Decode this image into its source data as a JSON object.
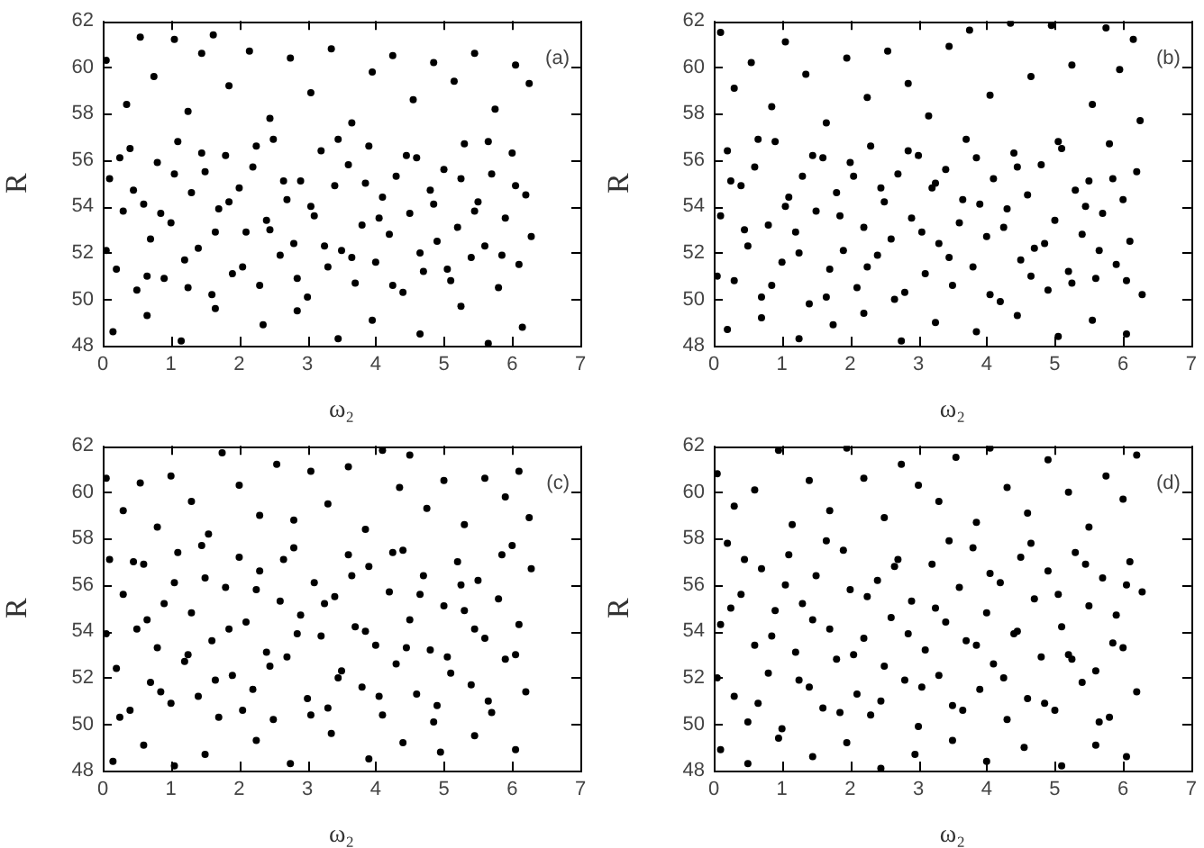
{
  "chart_data": [
    {
      "type": "scatter",
      "xlabel": "ω₂",
      "ylabel": "R",
      "xlim": [
        0,
        7
      ],
      "ylim": [
        48,
        62
      ],
      "xticks": [
        0,
        1,
        2,
        3,
        4,
        5,
        6,
        7
      ],
      "yticks": [
        48,
        50,
        52,
        54,
        56,
        58,
        60,
        62
      ],
      "grid": false,
      "marker": "circle",
      "annotations": [
        "(a)"
      ],
      "series": [
        {
          "color": "#000000",
          "x": [
            0.1,
            0.2,
            0.3,
            0.4,
            0.5,
            0.6,
            0.7,
            0.8,
            0.9,
            1.0,
            1.1,
            1.2,
            1.3,
            1.4,
            1.5,
            1.6,
            1.7,
            1.8,
            1.9,
            2.0,
            2.1,
            2.2,
            2.3,
            2.4,
            2.5,
            2.6,
            2.7,
            2.8,
            2.9,
            3.0,
            3.1,
            3.2,
            3.3,
            3.4,
            3.5,
            3.6,
            3.7,
            3.8,
            3.9,
            4.0,
            4.1,
            4.2,
            4.3,
            4.4,
            4.5,
            4.6,
            4.7,
            4.8,
            4.9,
            5.0,
            5.1,
            5.2,
            5.3,
            5.4,
            5.5,
            5.6,
            5.7,
            5.8,
            5.9,
            6.0,
            6.1,
            6.2,
            6.28,
            0.05,
            0.35,
            0.55,
            0.75,
            1.05,
            1.25,
            1.45,
            1.62,
            1.85,
            2.15,
            2.45,
            2.75,
            3.05,
            3.35,
            3.65,
            3.95,
            4.25,
            4.55,
            4.85,
            5.15,
            5.45,
            5.75,
            6.05,
            6.25,
            0.15,
            0.65,
            1.15,
            1.65,
            2.35,
            2.85,
            3.45,
            3.95,
            4.65,
            5.25,
            5.65,
            6.15,
            0.05,
            0.25,
            0.45,
            0.65,
            0.85,
            1.05,
            1.25,
            1.45,
            1.65,
            1.85,
            2.05,
            2.25,
            2.45,
            2.65,
            2.85,
            3.05,
            3.25,
            3.45,
            3.65,
            3.85,
            4.05,
            4.25,
            4.45,
            4.65,
            4.85,
            5.05,
            5.25,
            5.45,
            5.65,
            5.85,
            6.05
          ],
          "values": [
            55.2,
            51.3,
            53.8,
            56.5,
            50.4,
            54.1,
            52.6,
            55.9,
            50.9,
            53.3,
            56.8,
            51.7,
            54.6,
            52.2,
            55.5,
            50.2,
            53.9,
            56.2,
            51.1,
            54.8,
            52.9,
            55.7,
            50.6,
            53.4,
            56.9,
            51.9,
            54.3,
            52.4,
            55.1,
            50.1,
            53.6,
            56.4,
            51.4,
            54.9,
            52.1,
            55.8,
            50.7,
            53.2,
            56.6,
            51.6,
            54.4,
            52.8,
            55.3,
            50.3,
            53.7,
            56.1,
            51.2,
            54.7,
            52.5,
            55.6,
            50.8,
            53.1,
            56.7,
            51.8,
            54.2,
            52.3,
            55.4,
            50.5,
            53.5,
            56.3,
            51.5,
            54.5,
            52.7,
            60.3,
            58.4,
            61.3,
            59.6,
            61.2,
            58.1,
            60.6,
            61.4,
            59.2,
            60.7,
            57.8,
            60.4,
            58.9,
            60.8,
            57.6,
            59.8,
            60.5,
            58.6,
            60.2,
            59.4,
            60.6,
            58.2,
            60.1,
            59.3,
            48.6,
            49.3,
            48.2,
            49.6,
            48.9,
            49.5,
            48.3,
            49.1,
            48.5,
            49.7,
            48.1,
            48.8,
            52.1,
            56.1,
            54.7,
            51.0,
            53.7,
            55.4,
            50.5,
            56.3,
            52.9,
            54.2,
            51.4,
            56.6,
            53.0,
            55.1,
            50.9,
            54.0,
            52.3,
            56.9,
            51.8,
            55.0,
            53.5,
            50.6,
            56.2,
            52.0,
            54.1,
            51.3,
            55.2,
            53.8,
            56.8,
            51.9,
            54.9
          ]
        }
      ]
    },
    {
      "type": "scatter",
      "xlabel": "ω₂",
      "ylabel": "R",
      "xlim": [
        0,
        7
      ],
      "ylim": [
        48,
        62
      ],
      "xticks": [
        0,
        1,
        2,
        3,
        4,
        5,
        6,
        7
      ],
      "yticks": [
        48,
        50,
        52,
        54,
        56,
        58,
        60,
        62
      ],
      "grid": false,
      "marker": "circle",
      "annotations": [
        "(b)"
      ],
      "series": [
        {
          "color": "#000000",
          "x": [
            0.1,
            0.2,
            0.3,
            0.4,
            0.5,
            0.6,
            0.7,
            0.8,
            0.9,
            1.0,
            1.1,
            1.2,
            1.3,
            1.4,
            1.5,
            1.6,
            1.7,
            1.8,
            1.9,
            2.0,
            2.1,
            2.2,
            2.3,
            2.4,
            2.5,
            2.6,
            2.7,
            2.8,
            2.9,
            3.0,
            3.1,
            3.2,
            3.3,
            3.4,
            3.5,
            3.6,
            3.7,
            3.8,
            3.9,
            4.0,
            4.1,
            4.2,
            4.3,
            4.4,
            4.5,
            4.6,
            4.7,
            4.8,
            4.9,
            5.0,
            5.1,
            5.2,
            5.3,
            5.4,
            5.5,
            5.6,
            5.7,
            5.8,
            5.9,
            6.0,
            6.1,
            6.2,
            6.28,
            0.1,
            0.3,
            0.55,
            0.85,
            1.05,
            1.35,
            1.65,
            1.95,
            2.25,
            2.55,
            2.85,
            3.15,
            3.45,
            3.75,
            4.05,
            4.35,
            4.65,
            4.95,
            5.25,
            5.55,
            5.75,
            5.95,
            6.15,
            6.25,
            0.2,
            0.7,
            1.25,
            1.75,
            2.2,
            2.75,
            3.25,
            3.85,
            4.45,
            5.05,
            5.55,
            6.05,
            0.05,
            0.25,
            0.45,
            0.65,
            0.85,
            1.05,
            1.25,
            1.45,
            1.65,
            1.85,
            2.05,
            2.25,
            2.45,
            2.65,
            2.85,
            3.05,
            3.25,
            3.45,
            3.65,
            3.85,
            4.05,
            4.25,
            4.45,
            4.65,
            4.85,
            5.05,
            5.25,
            5.45,
            5.65,
            5.85,
            6.05
          ],
          "values": [
            53.6,
            56.4,
            50.8,
            54.9,
            52.3,
            55.7,
            50.1,
            53.2,
            56.8,
            51.6,
            54.4,
            52.9,
            55.3,
            49.8,
            53.8,
            56.1,
            51.3,
            54.6,
            52.1,
            55.9,
            50.5,
            53.1,
            56.6,
            51.9,
            54.2,
            52.6,
            55.4,
            50.3,
            53.5,
            56.2,
            51.1,
            54.8,
            52.4,
            55.6,
            50.6,
            53.3,
            56.9,
            51.4,
            54.1,
            52.7,
            55.2,
            49.9,
            53.9,
            56.3,
            51.7,
            54.5,
            52.2,
            55.8,
            50.4,
            53.4,
            56.5,
            51.2,
            54.7,
            52.8,
            55.1,
            50.9,
            53.7,
            56.7,
            51.5,
            54.3,
            52.5,
            55.5,
            50.2,
            61.5,
            59.1,
            60.2,
            58.3,
            61.1,
            59.7,
            57.6,
            60.4,
            58.7,
            60.7,
            59.3,
            57.9,
            60.9,
            61.6,
            58.8,
            61.9,
            59.6,
            61.8,
            60.1,
            58.4,
            61.7,
            59.9,
            61.2,
            57.7,
            48.7,
            49.2,
            48.3,
            48.9,
            49.4,
            48.2,
            49.0,
            48.6,
            49.3,
            48.4,
            49.1,
            48.5,
            51.0,
            55.1,
            53.0,
            56.9,
            50.6,
            54.0,
            52.0,
            56.2,
            50.1,
            53.6,
            55.3,
            51.4,
            54.8,
            50.0,
            56.4,
            52.9,
            55.0,
            51.8,
            54.3,
            56.1,
            50.2,
            53.1,
            55.7,
            51.0,
            52.4,
            56.8,
            50.7,
            54.0,
            52.1,
            55.2,
            50.8
          ]
        }
      ]
    },
    {
      "type": "scatter",
      "xlabel": "ω₂",
      "ylabel": "R",
      "xlim": [
        0,
        7
      ],
      "ylim": [
        48,
        62
      ],
      "xticks": [
        0,
        1,
        2,
        3,
        4,
        5,
        6,
        7
      ],
      "yticks": [
        48,
        50,
        52,
        54,
        56,
        58,
        60,
        62
      ],
      "grid": false,
      "marker": "circle",
      "annotations": [
        "(c)"
      ],
      "series": [
        {
          "color": "#000000",
          "x": [
            0.1,
            0.2,
            0.3,
            0.4,
            0.5,
            0.6,
            0.7,
            0.8,
            0.9,
            1.0,
            1.1,
            1.2,
            1.3,
            1.4,
            1.5,
            1.6,
            1.7,
            1.8,
            1.9,
            2.0,
            2.1,
            2.2,
            2.3,
            2.4,
            2.5,
            2.6,
            2.7,
            2.8,
            2.9,
            3.0,
            3.1,
            3.2,
            3.3,
            3.4,
            3.5,
            3.6,
            3.7,
            3.8,
            3.9,
            4.0,
            4.1,
            4.2,
            4.3,
            4.4,
            4.5,
            4.6,
            4.7,
            4.8,
            4.9,
            5.0,
            5.1,
            5.2,
            5.3,
            5.4,
            5.5,
            5.6,
            5.7,
            5.8,
            5.9,
            6.0,
            6.1,
            6.2,
            6.28,
            0.05,
            0.3,
            0.55,
            0.8,
            1.0,
            1.3,
            1.55,
            1.75,
            2.0,
            2.3,
            2.55,
            2.8,
            3.05,
            3.3,
            3.6,
            3.85,
            4.1,
            4.35,
            4.5,
            4.75,
            5.0,
            5.3,
            5.6,
            5.9,
            6.1,
            6.25,
            0.15,
            0.6,
            1.05,
            1.5,
            2.25,
            2.75,
            3.35,
            3.9,
            4.4,
            4.95,
            5.45,
            6.05,
            0.05,
            0.25,
            0.45,
            0.65,
            0.85,
            1.05,
            1.25,
            1.45,
            1.65,
            1.85,
            2.05,
            2.25,
            2.45,
            2.65,
            2.85,
            3.05,
            3.25,
            3.45,
            3.65,
            3.85,
            4.05,
            4.25,
            4.45,
            4.65,
            4.85,
            5.05,
            5.25,
            5.45,
            5.65,
            5.85,
            6.05
          ],
          "values": [
            57.1,
            52.4,
            55.6,
            50.6,
            54.1,
            56.9,
            51.8,
            53.3,
            55.2,
            50.9,
            57.4,
            52.7,
            54.8,
            51.2,
            56.3,
            53.6,
            50.3,
            55.9,
            52.1,
            57.2,
            54.4,
            51.5,
            56.6,
            53.1,
            50.2,
            55.3,
            52.9,
            57.6,
            54.7,
            51.1,
            56.1,
            53.8,
            50.7,
            55.5,
            52.3,
            57.3,
            54.2,
            51.6,
            56.8,
            53.4,
            50.4,
            55.7,
            52.6,
            57.5,
            54.5,
            51.3,
            56.4,
            53.2,
            50.8,
            55.1,
            52.2,
            57.0,
            54.9,
            51.7,
            56.2,
            53.7,
            50.5,
            55.4,
            52.8,
            57.7,
            54.3,
            51.4,
            56.7,
            60.6,
            59.2,
            60.4,
            58.5,
            60.7,
            59.6,
            58.2,
            61.7,
            60.3,
            59.0,
            61.2,
            58.8,
            60.9,
            59.5,
            61.1,
            58.4,
            61.8,
            60.2,
            61.6,
            59.3,
            60.5,
            58.6,
            60.6,
            59.8,
            60.9,
            58.9,
            48.4,
            49.1,
            48.2,
            48.7,
            49.3,
            48.3,
            49.6,
            48.5,
            49.2,
            48.8,
            49.5,
            48.9,
            53.9,
            50.3,
            57.0,
            54.5,
            51.4,
            56.1,
            53.0,
            57.7,
            51.9,
            54.1,
            50.6,
            55.8,
            52.5,
            57.1,
            53.9,
            50.4,
            55.2,
            52.0,
            56.4,
            54.0,
            51.2,
            57.4,
            53.3,
            55.6,
            50.1,
            52.9,
            56.0,
            54.1,
            51.0,
            57.3,
            53.0
          ]
        }
      ]
    },
    {
      "type": "scatter",
      "xlabel": "ω₂",
      "ylabel": "R",
      "xlim": [
        0,
        7
      ],
      "ylim": [
        48,
        62
      ],
      "xticks": [
        0,
        1,
        2,
        3,
        4,
        5,
        6,
        7
      ],
      "yticks": [
        48,
        50,
        52,
        54,
        56,
        58,
        60,
        62
      ],
      "grid": false,
      "marker": "circle",
      "annotations": [
        "(d)"
      ],
      "series": [
        {
          "color": "#000000",
          "x": [
            0.1,
            0.2,
            0.3,
            0.4,
            0.5,
            0.6,
            0.7,
            0.8,
            0.9,
            1.0,
            1.1,
            1.2,
            1.3,
            1.4,
            1.5,
            1.6,
            1.7,
            1.8,
            1.9,
            2.0,
            2.1,
            2.2,
            2.3,
            2.4,
            2.5,
            2.6,
            2.7,
            2.8,
            2.9,
            3.0,
            3.1,
            3.2,
            3.3,
            3.4,
            3.5,
            3.6,
            3.7,
            3.8,
            3.9,
            4.0,
            4.1,
            4.2,
            4.3,
            4.4,
            4.5,
            4.6,
            4.7,
            4.8,
            4.9,
            5.0,
            5.1,
            5.2,
            5.3,
            5.4,
            5.5,
            5.6,
            5.7,
            5.8,
            5.9,
            6.0,
            6.1,
            6.2,
            6.28,
            0.05,
            0.3,
            0.6,
            0.95,
            1.15,
            1.4,
            1.7,
            1.95,
            2.2,
            2.5,
            2.75,
            3.0,
            3.3,
            3.55,
            3.85,
            4.05,
            4.3,
            4.6,
            4.9,
            5.2,
            5.5,
            5.75,
            6.0,
            6.2,
            0.1,
            0.5,
            0.95,
            1.45,
            1.95,
            2.45,
            2.95,
            3.5,
            4.0,
            4.55,
            5.1,
            5.6,
            6.05,
            0.05,
            0.25,
            0.45,
            0.65,
            0.85,
            1.05,
            1.25,
            1.45,
            1.65,
            1.85,
            2.05,
            2.25,
            2.45,
            2.65,
            2.85,
            3.05,
            3.25,
            3.45,
            3.65,
            3.85,
            4.05,
            4.25,
            4.45,
            4.65,
            4.85,
            5.05,
            5.25,
            5.45,
            5.65,
            5.85,
            6.05
          ],
          "values": [
            54.3,
            57.8,
            51.2,
            55.6,
            50.1,
            53.4,
            56.7,
            52.2,
            54.9,
            49.8,
            57.3,
            53.1,
            55.2,
            51.6,
            56.4,
            50.7,
            54.1,
            52.8,
            57.5,
            55.8,
            51.3,
            53.7,
            50.4,
            56.2,
            52.5,
            54.6,
            57.1,
            51.9,
            55.3,
            49.9,
            53.2,
            56.9,
            52.1,
            54.4,
            50.8,
            55.9,
            53.6,
            57.6,
            51.5,
            54.8,
            52.6,
            56.1,
            50.2,
            53.9,
            57.2,
            51.1,
            55.4,
            52.9,
            56.6,
            50.6,
            54.2,
            53.0,
            57.4,
            51.8,
            55.1,
            52.3,
            56.3,
            50.3,
            54.7,
            53.3,
            57.0,
            51.4,
            55.7,
            60.8,
            59.4,
            60.1,
            61.8,
            58.6,
            60.5,
            59.2,
            61.9,
            60.6,
            58.9,
            61.2,
            60.3,
            59.6,
            61.5,
            58.7,
            61.9,
            60.2,
            59.1,
            61.4,
            60.0,
            58.5,
            60.7,
            59.7,
            61.6,
            48.9,
            48.3,
            49.4,
            48.6,
            49.2,
            48.1,
            48.7,
            49.3,
            48.4,
            49.0,
            48.2,
            49.1,
            48.6,
            52.0,
            55.0,
            57.1,
            50.9,
            53.8,
            56.0,
            51.9,
            54.5,
            57.9,
            50.5,
            53.0,
            55.5,
            51.0,
            56.8,
            53.9,
            51.6,
            55.0,
            57.9,
            50.6,
            53.4,
            56.5,
            52.0,
            54.0,
            57.8,
            50.9,
            55.6,
            52.8,
            56.9,
            50.1,
            53.5,
            56.0
          ]
        }
      ]
    }
  ]
}
